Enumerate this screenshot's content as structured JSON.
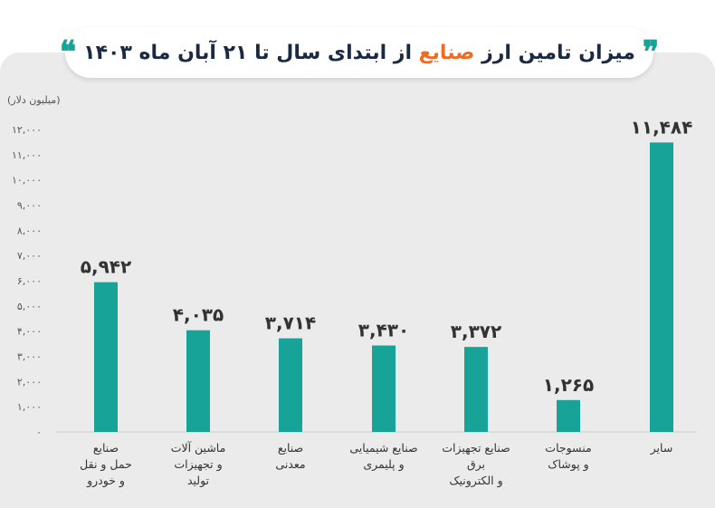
{
  "title": {
    "part1": "میزان تامین ارز ",
    "accent": "صنایع",
    "part2": " از ابتدای سال تا ۲۱ آبان ماه ۱۴۰۳",
    "quote_glyph": "❞",
    "quote_glyph_end": "❝"
  },
  "colors": {
    "bar": "#17a398",
    "accent": "#f26a21",
    "title": "#1b2a44"
  },
  "chart_data": {
    "type": "bar",
    "ylabel": "(میلیون دلار)",
    "ylim": [
      0,
      12000
    ],
    "yticks": [
      0,
      1000,
      2000,
      3000,
      4000,
      5000,
      6000,
      7000,
      8000,
      9000,
      10000,
      11000,
      12000
    ],
    "ytick_labels": [
      "۰",
      "۱,۰۰۰",
      "۲,۰۰۰",
      "۳,۰۰۰",
      "۴,۰۰۰",
      "۵,۰۰۰",
      "۶,۰۰۰",
      "۷,۰۰۰",
      "۸,۰۰۰",
      "۹,۰۰۰",
      "۱۰,۰۰۰",
      "۱۱,۰۰۰",
      "۱۲,۰۰۰"
    ],
    "categories": [
      [
        "صنایع",
        "حمل و نقل",
        "و خودرو"
      ],
      [
        "ماشین آلات",
        "و تجهیزات",
        "تولید"
      ],
      [
        "صنایع",
        "معدنی"
      ],
      [
        "صنایع شیمیایی",
        "و پلیمری"
      ],
      [
        "صنایع تجهیزات",
        "برق",
        "و الکترونیک"
      ],
      [
        "منسوجات",
        "و پوشاک"
      ],
      [
        "سایر"
      ]
    ],
    "values": [
      5942,
      4035,
      3714,
      3430,
      3372,
      1265,
      11484
    ],
    "value_labels": [
      "۵,۹۴۲",
      "۴,۰۳۵",
      "۳,۷۱۴",
      "۳,۴۳۰",
      "۳,۳۷۲",
      "۱,۲۶۵",
      "۱۱,۴۸۴"
    ],
    "grid": false,
    "legend": "none"
  }
}
